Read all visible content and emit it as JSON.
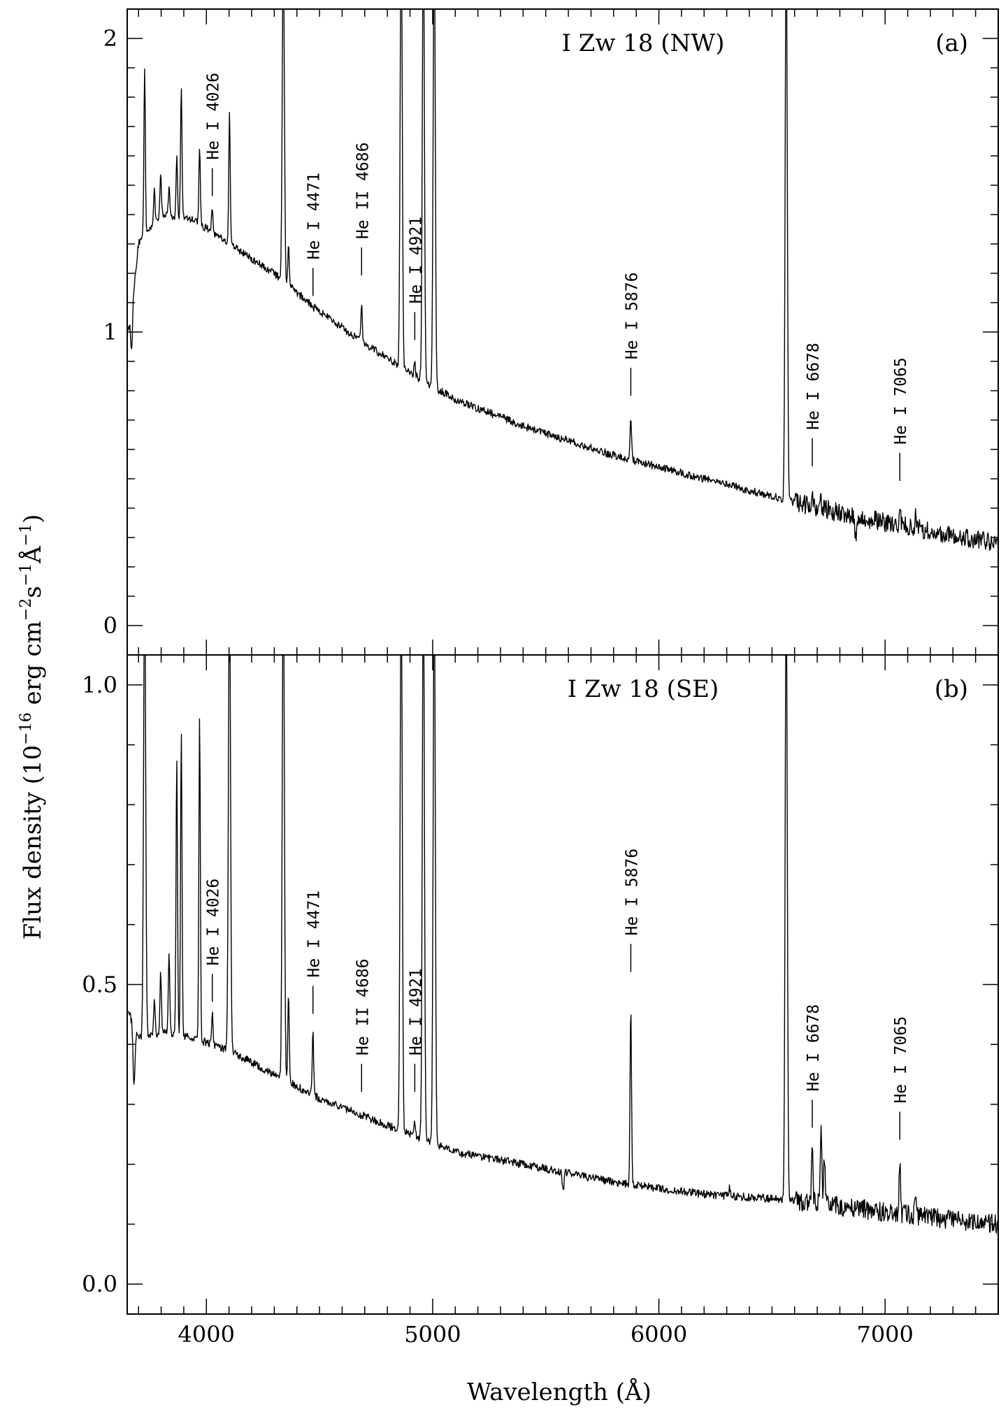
{
  "figure": {
    "ylabel": "Flux density (10",
    "ylabel_exp1": "−16",
    "ylabel_mid": " erg cm",
    "ylabel_exp2": "−2",
    "ylabel_s": "s",
    "ylabel_exp3": "−1",
    "ylabel_A": "Å",
    "ylabel_exp4": "−1",
    "ylabel_close": ")",
    "xlabel": "Wavelength (Å)"
  },
  "chart_data": [
    {
      "id": "a",
      "type": "line",
      "title": "I Zw 18 (NW)",
      "panel_label": "(a)",
      "xlim": [
        3650,
        7500
      ],
      "ylim": [
        -0.1,
        2.1
      ],
      "xticks": [
        4000,
        5000,
        6000,
        7000
      ],
      "yticks": [
        0,
        1,
        2
      ],
      "ytick_labels": [
        "0",
        "1",
        "2"
      ],
      "yminor_step": 0.1,
      "continuum": [
        [
          3660,
          1.02
        ],
        [
          3700,
          1.3
        ],
        [
          3800,
          1.4
        ],
        [
          3950,
          1.38
        ],
        [
          4100,
          1.3
        ],
        [
          4300,
          1.2
        ],
        [
          4500,
          1.07
        ],
        [
          4700,
          0.96
        ],
        [
          4900,
          0.86
        ],
        [
          5100,
          0.77
        ],
        [
          5400,
          0.68
        ],
        [
          5800,
          0.58
        ],
        [
          6200,
          0.5
        ],
        [
          6600,
          0.42
        ],
        [
          7000,
          0.35
        ],
        [
          7500,
          0.28
        ]
      ],
      "lines": [
        {
          "w": 3727,
          "peak": 1.9
        },
        {
          "w": 3770,
          "peak": 1.48
        },
        {
          "w": 3798,
          "peak": 1.53
        },
        {
          "w": 3835,
          "peak": 1.5
        },
        {
          "w": 3869,
          "peak": 1.6
        },
        {
          "w": 3889,
          "peak": 1.83
        },
        {
          "w": 3970,
          "peak": 1.63
        },
        {
          "w": 4026,
          "peak": 1.42
        },
        {
          "w": 4102,
          "peak": 1.74
        },
        {
          "w": 4340,
          "peak": 2.3
        },
        {
          "w": 4363,
          "peak": 1.29
        },
        {
          "w": 4471,
          "peak": 1.08
        },
        {
          "w": 4686,
          "peak": 1.09
        },
        {
          "w": 4861,
          "peak": 2.4
        },
        {
          "w": 4921,
          "peak": 0.89
        },
        {
          "w": 4959,
          "peak": 2.4
        },
        {
          "w": 5007,
          "peak": 2.4
        },
        {
          "w": 5876,
          "peak": 0.7
        },
        {
          "w": 6563,
          "peak": 2.4
        },
        {
          "w": 6678,
          "peak": 0.46
        },
        {
          "w": 6717,
          "peak": 0.43
        },
        {
          "w": 7065,
          "peak": 0.4
        },
        {
          "w": 7136,
          "peak": 0.38
        }
      ],
      "absorptions": [
        {
          "w": 3670,
          "depth": 0.15
        },
        {
          "w": 6870,
          "depth": 0.06
        }
      ],
      "labels": [
        {
          "text": "He I 4026",
          "w": 4026,
          "y": 1.42
        },
        {
          "text": "He I 4471",
          "w": 4471,
          "y": 1.08
        },
        {
          "text": "He II 4686",
          "w": 4686,
          "y": 1.15
        },
        {
          "text": "He I 4921",
          "w": 4921,
          "y": 0.93
        },
        {
          "text": "He I 5876",
          "w": 5876,
          "y": 0.74
        },
        {
          "text": "He I 6678",
          "w": 6678,
          "y": 0.5
        },
        {
          "text": "He I 7065",
          "w": 7065,
          "y": 0.45
        }
      ]
    },
    {
      "id": "b",
      "type": "line",
      "title": "I Zw 18 (SE)",
      "panel_label": "(b)",
      "xlim": [
        3650,
        7500
      ],
      "ylim": [
        -0.05,
        1.05
      ],
      "xticks": [
        4000,
        5000,
        6000,
        7000
      ],
      "xtick_labels": [
        "4000",
        "5000",
        "6000",
        "7000"
      ],
      "yticks": [
        0,
        0.5,
        1.0
      ],
      "ytick_labels": [
        "0.0",
        "0.5",
        "1.0"
      ],
      "yminor_step": 0.1,
      "continuum": [
        [
          3660,
          0.45
        ],
        [
          3700,
          0.41
        ],
        [
          3800,
          0.42
        ],
        [
          3950,
          0.41
        ],
        [
          4100,
          0.39
        ],
        [
          4300,
          0.35
        ],
        [
          4500,
          0.31
        ],
        [
          4700,
          0.28
        ],
        [
          4900,
          0.25
        ],
        [
          5100,
          0.22
        ],
        [
          5400,
          0.2
        ],
        [
          5800,
          0.17
        ],
        [
          6200,
          0.15
        ],
        [
          6600,
          0.14
        ],
        [
          7000,
          0.12
        ],
        [
          7500,
          0.1
        ]
      ],
      "lines": [
        {
          "w": 3727,
          "peak": 1.2
        },
        {
          "w": 3770,
          "peak": 0.47
        },
        {
          "w": 3798,
          "peak": 0.52
        },
        {
          "w": 3835,
          "peak": 0.55
        },
        {
          "w": 3869,
          "peak": 0.88
        },
        {
          "w": 3889,
          "peak": 0.92
        },
        {
          "w": 3970,
          "peak": 0.95
        },
        {
          "w": 4026,
          "peak": 0.45
        },
        {
          "w": 4102,
          "peak": 1.2
        },
        {
          "w": 4340,
          "peak": 1.2
        },
        {
          "w": 4363,
          "peak": 0.49
        },
        {
          "w": 4471,
          "peak": 0.42
        },
        {
          "w": 4686,
          "peak": 0.28
        },
        {
          "w": 4861,
          "peak": 1.2
        },
        {
          "w": 4921,
          "peak": 0.27
        },
        {
          "w": 4959,
          "peak": 1.2
        },
        {
          "w": 5007,
          "peak": 1.2
        },
        {
          "w": 5876,
          "peak": 0.47
        },
        {
          "w": 6312,
          "peak": 0.16
        },
        {
          "w": 6563,
          "peak": 1.2
        },
        {
          "w": 6678,
          "peak": 0.22
        },
        {
          "w": 6717,
          "peak": 0.27
        },
        {
          "w": 6731,
          "peak": 0.22
        },
        {
          "w": 7065,
          "peak": 0.2
        },
        {
          "w": 7136,
          "peak": 0.16
        }
      ],
      "absorptions": [
        {
          "w": 3680,
          "depth": 0.1
        },
        {
          "w": 5577,
          "depth": 0.03
        }
      ],
      "labels": [
        {
          "text": "He I 4026",
          "w": 4026,
          "y": 0.45
        },
        {
          "text": "He I 4471",
          "w": 4471,
          "y": 0.43
        },
        {
          "text": "He II 4686",
          "w": 4686,
          "y": 0.3
        },
        {
          "text": "He I 4921",
          "w": 4921,
          "y": 0.3
        },
        {
          "text": "He I 5876",
          "w": 5876,
          "y": 0.5
        },
        {
          "text": "He I 6678",
          "w": 6678,
          "y": 0.24
        },
        {
          "text": "He I 7065",
          "w": 7065,
          "y": 0.22
        }
      ]
    }
  ]
}
